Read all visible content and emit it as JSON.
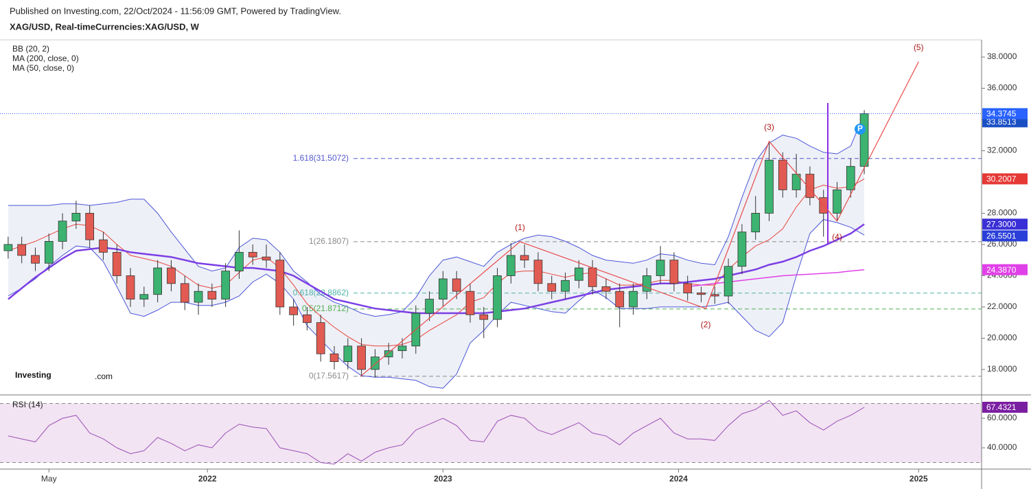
{
  "header": {
    "published": "Published on Investing.com, 22/Oct/2024 - 11:56:09 GMT, Powered by TradingView.",
    "symbol": "XAG/USD, Real-timeCurrencies:XAG/USD, W"
  },
  "logo": {
    "brand": "Investing",
    "suffix": ".com"
  },
  "chart_data": [
    {
      "type": "candlestick",
      "legend": [
        "BB (20, 2)",
        "MA (200, close, 0)",
        "MA (50, close, 0)"
      ],
      "x": [
        -44,
        -41,
        -38,
        -35,
        -32,
        -29,
        -26,
        -23,
        -20,
        -17,
        -14,
        -11,
        -8,
        -5,
        -2,
        1,
        4,
        7,
        10,
        13,
        16,
        19,
        22,
        25,
        28,
        31,
        34,
        37,
        40,
        43,
        46,
        49,
        52,
        55,
        58,
        61,
        64,
        67,
        70,
        73,
        76,
        79,
        82,
        85,
        88,
        91,
        94,
        97,
        100,
        103,
        106,
        109,
        112,
        115,
        118,
        121,
        124,
        127,
        130,
        133,
        136,
        139,
        142,
        145
      ],
      "open": [
        25.6,
        26.0,
        25.3,
        24.8,
        26.2,
        27.5,
        28.0,
        26.3,
        25.5,
        24.0,
        22.5,
        22.8,
        24.5,
        23.5,
        22.3,
        23.0,
        22.5,
        24.3,
        25.5,
        25.2,
        25.0,
        22.0,
        21.5,
        21.0,
        19.0,
        18.5,
        19.5,
        18.0,
        18.8,
        19.2,
        19.5,
        21.6,
        22.5,
        23.8,
        23.0,
        21.5,
        21.2,
        24.0,
        25.3,
        25.0,
        23.5,
        23.0,
        23.7,
        24.5,
        23.3,
        23.0,
        22.0,
        23.0,
        24.0,
        25.0,
        23.5,
        22.9,
        22.8,
        22.7,
        24.6,
        26.8,
        28.0,
        31.4,
        29.5,
        30.5,
        29.0,
        28.0,
        29.5,
        31.0
      ],
      "high": [
        26.5,
        26.5,
        25.8,
        26.7,
        28.0,
        28.8,
        28.5,
        26.8,
        26.0,
        24.5,
        23.3,
        25.0,
        25.0,
        24.0,
        23.5,
        23.5,
        24.8,
        26.9,
        26.0,
        26.0,
        25.5,
        22.5,
        22.0,
        21.5,
        19.5,
        20.0,
        20.0,
        19.3,
        19.7,
        20.0,
        22.1,
        23.0,
        24.3,
        24.3,
        23.5,
        22.0,
        24.5,
        26.1,
        26.0,
        25.5,
        24.0,
        24.2,
        25.0,
        25.0,
        23.8,
        23.5,
        23.5,
        24.5,
        25.9,
        25.5,
        24.0,
        23.3,
        23.3,
        25.1,
        27.3,
        29.1,
        32.5,
        31.9,
        31.8,
        31.0,
        29.5,
        30.0,
        31.5,
        34.6
      ],
      "low": [
        25.1,
        24.8,
        24.3,
        24.3,
        25.7,
        27.0,
        25.8,
        25.0,
        23.5,
        22.0,
        22.0,
        22.3,
        23.0,
        21.8,
        21.5,
        22.0,
        22.0,
        23.8,
        24.7,
        24.5,
        21.5,
        20.8,
        20.5,
        18.5,
        18.0,
        18.0,
        17.56,
        17.5,
        18.3,
        18.7,
        19.0,
        21.1,
        22.0,
        22.5,
        21.0,
        20.0,
        20.7,
        23.5,
        24.5,
        23.0,
        22.5,
        22.5,
        23.2,
        22.8,
        22.5,
        20.7,
        21.5,
        22.5,
        23.5,
        23.0,
        22.4,
        22.3,
        22.2,
        22.2,
        24.1,
        26.3,
        27.5,
        29.0,
        29.0,
        28.5,
        26.5,
        27.5,
        29.0,
        30.5
      ],
      "close": [
        26.0,
        25.3,
        24.8,
        26.2,
        27.5,
        28.0,
        26.3,
        25.5,
        24.0,
        22.5,
        22.8,
        24.5,
        23.5,
        22.3,
        23.0,
        22.5,
        24.3,
        25.5,
        25.2,
        25.0,
        22.0,
        21.5,
        21.0,
        19.0,
        18.5,
        19.5,
        18.0,
        18.8,
        19.2,
        19.5,
        21.6,
        22.5,
        23.8,
        23.0,
        21.5,
        21.2,
        24.0,
        25.3,
        25.0,
        23.5,
        23.0,
        23.7,
        24.5,
        23.3,
        23.0,
        22.0,
        23.0,
        24.0,
        25.0,
        23.5,
        22.9,
        22.8,
        22.7,
        24.6,
        26.8,
        28.0,
        31.4,
        29.5,
        30.5,
        29.0,
        28.0,
        29.5,
        31.0,
        34.3745
      ],
      "up_color": "#3cb371",
      "down_color": "#e25b52",
      "overlays": [
        {
          "color": "#4a55d8",
          "width": 1,
          "values": [
            28.5,
            28.5,
            28.5,
            28.5,
            28.6,
            28.6,
            28.5,
            28.6,
            28.7,
            28.9,
            28.9,
            28.0,
            26.8,
            25.7,
            24.6,
            24.3,
            24.5,
            25.8,
            26.4,
            26.3,
            25.5,
            24.3,
            23.6,
            22.8,
            22.3,
            22.0,
            21.6,
            21.4,
            21.5,
            21.7,
            22.6,
            24.0,
            25.0,
            25.2,
            24.9,
            24.6,
            25.5,
            26.0,
            26.4,
            26.6,
            26.5,
            26.2,
            25.8,
            25.3,
            25.0,
            24.9,
            24.8,
            25.0,
            25.4,
            25.3,
            25.0,
            24.8,
            24.7,
            26.5,
            29.0,
            31.3,
            32.5,
            33.0,
            32.8,
            32.3,
            31.9,
            31.8,
            32.3,
            34.4
          ]
        },
        {
          "color": "#4a55d8",
          "width": 1,
          "values": [
            22.7,
            23.2,
            23.8,
            24.6,
            25.3,
            25.9,
            25.8,
            24.9,
            23.3,
            21.6,
            21.4,
            21.8,
            22.3,
            22.3,
            22.1,
            22.1,
            22.3,
            22.7,
            23.6,
            24.1,
            23.5,
            22.5,
            20.8,
            19.9,
            19.0,
            18.2,
            17.6,
            17.5,
            17.5,
            17.4,
            17.3,
            16.9,
            16.8,
            17.7,
            19.7,
            20.5,
            21.5,
            22.3,
            22.1,
            21.9,
            21.7,
            21.6,
            22.4,
            23.1,
            22.6,
            21.9,
            21.9,
            21.9,
            22.0,
            22.0,
            22.0,
            22.0,
            22.1,
            22.3,
            21.4,
            20.5,
            20.1,
            21.0,
            24.0,
            26.7,
            27.6,
            27.4,
            27.1,
            26.6
          ]
        },
        {
          "color": "#e8453c",
          "width": 1,
          "values": [
            25.6,
            25.9,
            26.2,
            26.6,
            27.0,
            27.3,
            27.2,
            26.8,
            26.0,
            25.3,
            25.1,
            24.9,
            24.6,
            24.0,
            23.4,
            23.2,
            23.4,
            24.2,
            25.0,
            25.2,
            24.5,
            23.4,
            22.2,
            21.4,
            20.7,
            20.1,
            19.6,
            19.5,
            19.5,
            19.6,
            19.9,
            20.5,
            21.0,
            21.5,
            22.3,
            22.6,
            23.5,
            24.2,
            24.3,
            24.3,
            24.1,
            23.9,
            24.1,
            24.2,
            23.8,
            23.4,
            23.4,
            23.5,
            23.7,
            23.7,
            23.5,
            23.4,
            23.4,
            24.4,
            25.2,
            25.9,
            26.3,
            27.0,
            28.4,
            29.5,
            29.8,
            29.6,
            29.7,
            30.2
          ]
        },
        {
          "color": "#7b3fe4",
          "width": 2.5,
          "values": [
            22.5,
            23.2,
            23.9,
            24.5,
            25.1,
            25.6,
            25.7,
            25.8,
            25.7,
            25.5,
            25.4,
            25.3,
            25.2,
            25.0,
            24.8,
            24.7,
            24.6,
            24.5,
            24.5,
            24.4,
            24.3,
            24.0,
            23.5,
            23.0,
            22.5,
            22.3,
            22.1,
            21.9,
            21.8,
            21.7,
            21.6,
            21.6,
            21.6,
            21.6,
            21.6,
            21.6,
            21.7,
            21.8,
            21.9,
            22.1,
            22.3,
            22.5,
            22.7,
            22.9,
            23.1,
            23.2,
            23.3,
            23.4,
            23.5,
            23.5,
            23.6,
            23.7,
            23.8,
            24.0,
            24.2,
            24.4,
            24.7,
            24.9,
            25.2,
            25.6,
            25.9,
            26.3,
            26.7,
            27.3
          ]
        },
        {
          "color": "#e040e8",
          "width": 1.5,
          "values": [
            null,
            null,
            null,
            null,
            null,
            null,
            null,
            null,
            null,
            null,
            null,
            null,
            null,
            null,
            null,
            null,
            null,
            null,
            null,
            null,
            null,
            null,
            null,
            null,
            null,
            null,
            null,
            null,
            null,
            null,
            null,
            null,
            null,
            null,
            null,
            null,
            null,
            null,
            null,
            null,
            null,
            null,
            null,
            null,
            null,
            null,
            null,
            null,
            null,
            null,
            23.3,
            23.4,
            23.5,
            23.6,
            23.7,
            23.8,
            23.9,
            24.0,
            24.05,
            24.1,
            24.15,
            24.2,
            24.3,
            24.387
          ]
        }
      ],
      "fib_levels": [
        {
          "label": "1.618(31.5072)",
          "value": 31.5072,
          "color": "#5558d0"
        },
        {
          "label": "1(26.1807)",
          "value": 26.1807,
          "color": "#8a8a8a"
        },
        {
          "label": "0.618(22.8862)",
          "value": 22.8862,
          "color": "#4fb3a9"
        },
        {
          "label": "0.5(21.8712)",
          "value": 21.8712,
          "color": "#4caf50"
        },
        {
          "label": "0(17.5617)",
          "value": 17.5617,
          "color": "#8a8a8a"
        }
      ],
      "wave": {
        "color": "#e84a4a",
        "label_color": "#b01818",
        "x": [
          33.8,
          69,
          110,
          124,
          139,
          157
        ],
        "y": [
          17.56,
          26.18,
          21.9,
          32.6,
          27.5,
          37.7
        ],
        "labels": [
          null,
          "(1)",
          "(2)",
          "(3)",
          "(4)",
          "(5)"
        ]
      },
      "price_labels": [
        {
          "value": 33.8513,
          "color": "#1a4fc4"
        },
        {
          "value": 30.2007,
          "color": "#e53935"
        },
        {
          "value": 27.3,
          "label": "27.3000",
          "color": "#3a2fd6"
        },
        {
          "value": 26.5501,
          "color": "#2a3fd8"
        },
        {
          "value": 24.387,
          "label": "24.3870",
          "color": "#e040e8"
        }
      ],
      "last_price_color": "#2962ff",
      "xlim": [
        -45.8,
        170.9
      ],
      "xticks": [
        {
          "value": -35,
          "label": "May"
        },
        {
          "value": 0,
          "label": "2022"
        },
        {
          "value": 52,
          "label": "2023"
        },
        {
          "value": 104,
          "label": "2024"
        },
        {
          "value": 157,
          "label": "2025"
        }
      ],
      "ylim": [
        16.37,
        39.1
      ],
      "yticks": [
        {
          "value": 18,
          "label": "18.0000"
        },
        {
          "value": 20,
          "label": "20.0000"
        },
        {
          "value": 22,
          "label": "22.0000"
        },
        {
          "value": 24,
          "label": "24.0000"
        },
        {
          "value": 26,
          "label": "26.0000"
        },
        {
          "value": 28,
          "label": "28.0000"
        },
        {
          "value": 30,
          "label": "30.0000"
        },
        {
          "value": 32,
          "label": "32.0000"
        },
        {
          "value": 34,
          "label": "34.0000"
        },
        {
          "value": 36,
          "label": "36.0000"
        },
        {
          "value": 38,
          "label": "38.0000"
        }
      ],
      "grid": false
    },
    {
      "type": "line",
      "title": "RSI (14)",
      "color": "#9c4fb8",
      "label_color": "#7b1fa2",
      "values": [
        48,
        46,
        44,
        55,
        60,
        62,
        50,
        46,
        40,
        36,
        38,
        47,
        43,
        38,
        42,
        40,
        50,
        56,
        54,
        53,
        40,
        38,
        36,
        30,
        29,
        36,
        31,
        37,
        40,
        42,
        52,
        56,
        60,
        55,
        45,
        44,
        58,
        62,
        60,
        52,
        49,
        53,
        57,
        50,
        48,
        42,
        50,
        55,
        60,
        50,
        46,
        46,
        45,
        55,
        63,
        66,
        72,
        62,
        65,
        57,
        52,
        58,
        62,
        67.4321
      ],
      "bands": [
        30,
        70
      ],
      "ylim": [
        25.6,
        74.4
      ],
      "yticks": [
        {
          "value": 40,
          "label": "40.0000"
        },
        {
          "value": 60,
          "label": "60.0000"
        }
      ]
    }
  ]
}
